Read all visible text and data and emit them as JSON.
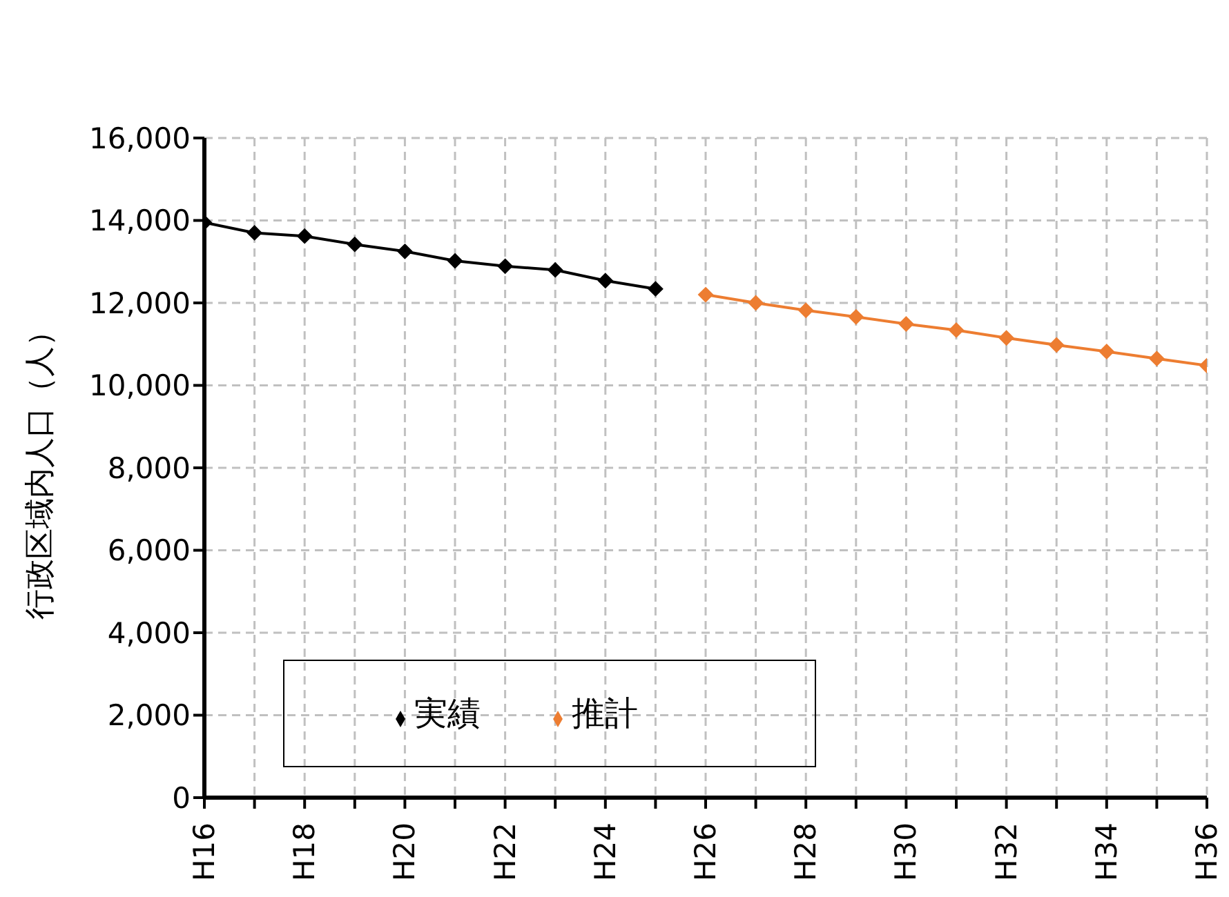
{
  "chart_data": {
    "type": "line",
    "ylabel": "行政区域内人口（人）",
    "categories": [
      "H16",
      null,
      "H18",
      null,
      "H20",
      null,
      "H22",
      null,
      "H24",
      null,
      "H26",
      null,
      "H28",
      null,
      "H30",
      null,
      "H32",
      null,
      "H34",
      null,
      "H36"
    ],
    "series": [
      {
        "name": "実績",
        "color": "#000000",
        "values": [
          13950,
          13700,
          13620,
          13420,
          13250,
          13020,
          12890,
          12800,
          12540,
          12340,
          null,
          null,
          null,
          null,
          null,
          null,
          null,
          null,
          null,
          null,
          null
        ]
      },
      {
        "name": "推計",
        "color": "#ed7d31",
        "values": [
          null,
          null,
          null,
          null,
          null,
          null,
          null,
          null,
          null,
          null,
          12200,
          12000,
          11820,
          11660,
          11490,
          11340,
          11150,
          10980,
          10820,
          10650,
          10480
        ]
      }
    ],
    "ylim": [
      0,
      16000
    ],
    "yticks": [
      0,
      {
        "value": 2000,
        "label": "2,000"
      },
      {
        "value": 4000,
        "label": "4,000"
      },
      {
        "value": 6000,
        "label": "6,000"
      },
      {
        "value": 8000,
        "label": "8,000"
      },
      {
        "value": 10000,
        "label": "10,000"
      },
      {
        "value": 12000,
        "label": "12,000"
      },
      {
        "value": 14000,
        "label": "14,000"
      },
      {
        "value": 16000,
        "label": "16,000"
      }
    ],
    "grid": true,
    "legend": "bottom left",
    "marker": "diamond",
    "line_style": "solid"
  }
}
